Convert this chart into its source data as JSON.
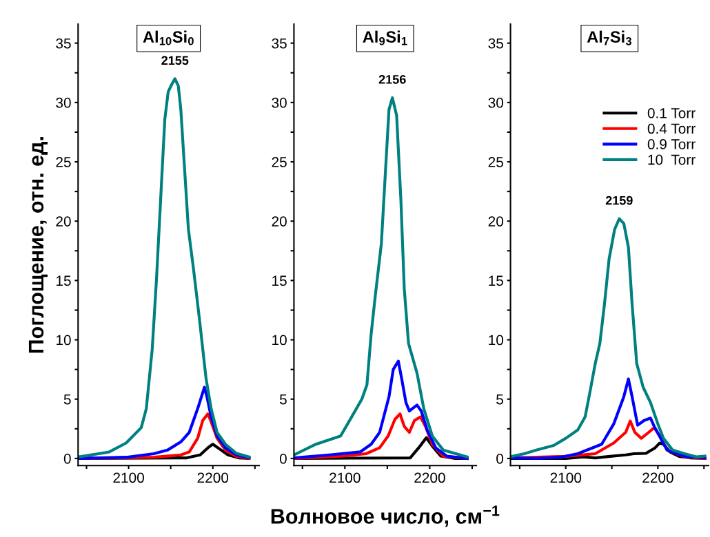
{
  "chart_data": [
    {
      "type": "line",
      "title": "Al$_{10}$Si$_{0}$",
      "ylabel": "Поглощение, отн. ед.",
      "xlim": [
        2040,
        2255
      ],
      "ylim": [
        -0.6,
        36.6
      ],
      "xticks": [
        {
          "value": 2050,
          "label": null
        },
        2100,
        {
          "value": 2150,
          "label": null
        },
        2200,
        {
          "value": 2250,
          "label": null
        }
      ],
      "yticks": [
        0,
        {
          "value": 2.5,
          "label": null
        },
        5,
        {
          "value": 7.5,
          "label": null
        },
        10,
        {
          "value": 12.5,
          "label": null
        },
        15,
        {
          "value": 17.5,
          "label": null
        },
        20,
        {
          "value": 22.5,
          "label": null
        },
        25,
        {
          "value": 27.5,
          "label": null
        },
        30,
        {
          "value": 32.5,
          "label": null
        },
        35
      ],
      "annotations": [
        {
          "text": "2155",
          "x": 2155,
          "y": 32
        }
      ],
      "grid": false,
      "legend": false,
      "series": [
        {
          "color": "#000000",
          "x": [
            2041,
            2169,
            2185,
            2195,
            2200,
            2208,
            2218,
            2231,
            2243
          ],
          "values": [
            0,
            0.05,
            0.3,
            0.95,
            1.2,
            0.8,
            0.3,
            0.05,
            0
          ]
        },
        {
          "color": "#ff0000",
          "x": [
            2041,
            2130,
            2162,
            2172,
            2182,
            2188,
            2194,
            2198,
            2205,
            2215,
            2228,
            2243
          ],
          "values": [
            0,
            0.1,
            0.3,
            0.55,
            1.7,
            3.2,
            3.75,
            3.1,
            1.7,
            0.7,
            0.18,
            0
          ]
        },
        {
          "color": "#0000ff",
          "x": [
            2041,
            2097,
            2130,
            2146,
            2162,
            2172,
            2182,
            2190,
            2193,
            2198,
            2205,
            2215,
            2228,
            2243
          ],
          "values": [
            0,
            0.1,
            0.4,
            0.7,
            1.4,
            2.2,
            4.2,
            6.0,
            5.2,
            3.5,
            1.9,
            0.9,
            0.3,
            0.05
          ]
        },
        {
          "color": "#008080",
          "x": [
            2041,
            2077,
            2097,
            2115,
            2121,
            2128,
            2133,
            2138,
            2143,
            2147,
            2151,
            2155,
            2159,
            2162,
            2166,
            2171,
            2177,
            2184,
            2192,
            2198,
            2205,
            2215,
            2228,
            2243
          ],
          "values": [
            0.13,
            0.55,
            1.3,
            2.6,
            4.2,
            9.2,
            15,
            21.8,
            28.6,
            30.9,
            31.5,
            32,
            31.4,
            29.4,
            24.9,
            19.3,
            16,
            11.8,
            6.7,
            4.2,
            2.2,
            1.2,
            0.43,
            0.13
          ]
        }
      ]
    },
    {
      "type": "line",
      "title": "Al$_{9}$Si$_{1}$",
      "xlabel": "Волновое число, см$^{−1}$",
      "xlim": [
        2040,
        2255
      ],
      "ylim": [
        -0.6,
        36.6
      ],
      "xticks": [
        {
          "value": 2050,
          "label": null
        },
        2100,
        {
          "value": 2150,
          "label": null
        },
        2200,
        {
          "value": 2250,
          "label": null
        }
      ],
      "yticks": [
        0,
        {
          "value": 2.5,
          "label": null
        },
        5,
        {
          "value": 7.5,
          "label": null
        },
        10,
        {
          "value": 12.5,
          "label": null
        },
        15,
        {
          "value": 17.5,
          "label": null
        },
        20,
        {
          "value": 22.5,
          "label": null
        },
        25,
        {
          "value": 27.5,
          "label": null
        },
        30,
        {
          "value": 32.5,
          "label": null
        },
        35
      ],
      "annotations": [
        {
          "text": "2156",
          "x": 2156,
          "y": 30.4
        }
      ],
      "grid": false,
      "legend": false,
      "series": [
        {
          "color": "#000000",
          "x": [
            2040,
            2177,
            2187,
            2196,
            2203,
            2213,
            2230,
            2244
          ],
          "values": [
            0,
            0.05,
            0.9,
            1.75,
            1.05,
            0.2,
            0,
            0
          ]
        },
        {
          "color": "#ff0000",
          "x": [
            2040,
            2098,
            2125,
            2141,
            2151,
            2159,
            2165,
            2170,
            2176,
            2182,
            2189,
            2195,
            2203,
            2216,
            2244
          ],
          "values": [
            0,
            0.2,
            0.4,
            0.9,
            1.9,
            3.3,
            3.75,
            2.7,
            2.2,
            3.2,
            3.5,
            2.7,
            1.2,
            0.18,
            0
          ]
        },
        {
          "color": "#0000ff",
          "x": [
            2040,
            2082,
            2118,
            2131,
            2141,
            2152,
            2157,
            2163,
            2167,
            2172,
            2176,
            2185,
            2190,
            2197,
            2207,
            2220,
            2244
          ],
          "values": [
            0.05,
            0.3,
            0.55,
            1.2,
            2.2,
            5.2,
            7.5,
            8.2,
            6.7,
            4.7,
            4.0,
            4.5,
            4.0,
            2.4,
            0.9,
            0.2,
            0
          ]
        },
        {
          "color": "#008080",
          "x": [
            2040,
            2066,
            2095,
            2108,
            2120,
            2126,
            2131,
            2136,
            2143,
            2148,
            2152,
            2156,
            2161,
            2166,
            2170,
            2175,
            2185,
            2193,
            2203,
            2216,
            2244
          ],
          "values": [
            0.3,
            1.2,
            1.9,
            3.5,
            5.0,
            6.2,
            10.5,
            13.8,
            18.1,
            24.4,
            29.4,
            30.4,
            28.9,
            21.8,
            14.3,
            9.7,
            7.2,
            4.2,
            1.9,
            0.7,
            0.13
          ]
        }
      ]
    },
    {
      "type": "line",
      "title": "Al$_{7}$Si$_{3}$",
      "xlim": [
        2040,
        2255
      ],
      "ylim": [
        -0.6,
        36.6
      ],
      "xticks": [
        {
          "value": 2050,
          "label": null
        },
        2100,
        {
          "value": 2150,
          "label": null
        },
        2200,
        {
          "value": 2250,
          "label": null
        }
      ],
      "yticks": [
        0,
        {
          "value": 2.5,
          "label": null
        },
        5,
        {
          "value": 7.5,
          "label": null
        },
        10,
        {
          "value": 12.5,
          "label": null
        },
        15,
        {
          "value": 17.5,
          "label": null
        },
        20,
        {
          "value": 22.5,
          "label": null
        },
        25,
        {
          "value": 27.5,
          "label": null
        },
        30,
        {
          "value": 32.5,
          "label": null
        },
        35
      ],
      "annotations": [
        {
          "text": "2159",
          "x": 2158,
          "y": 20.2
        }
      ],
      "grid": false,
      "legend": "top right",
      "series": [
        {
          "name": "0.1 Torr",
          "color": "#000000",
          "x": [
            2042,
            2100,
            2119,
            2132,
            2148,
            2165,
            2174,
            2187,
            2197,
            2202,
            2206,
            2213,
            2223,
            2235,
            2251
          ],
          "values": [
            0,
            0,
            0.13,
            0.05,
            0.18,
            0.3,
            0.4,
            0.43,
            0.9,
            1.3,
            1.2,
            0.55,
            0.18,
            0.05,
            0
          ]
        },
        {
          "name": "0.4 Torr",
          "color": "#ff0000",
          "x": [
            2042,
            2100,
            2132,
            2152,
            2165,
            2170,
            2175,
            2182,
            2190,
            2196,
            2202,
            2210,
            2229,
            2251
          ],
          "values": [
            0.05,
            0.18,
            0.4,
            1.3,
            2.2,
            3.15,
            2.2,
            1.7,
            2.2,
            2.6,
            1.9,
            0.7,
            0.13,
            0
          ]
        },
        {
          "name": "0.9 Torr",
          "color": "#0000ff",
          "x": [
            2042,
            2068,
            2094,
            2113,
            2139,
            2152,
            2163,
            2168,
            2172,
            2178,
            2185,
            2192,
            2196,
            2203,
            2210,
            2229,
            2251
          ],
          "values": [
            0.05,
            0,
            0.1,
            0.4,
            1.2,
            2.9,
            5.2,
            6.7,
            5.2,
            2.8,
            3.2,
            3.4,
            2.7,
            1.7,
            0.7,
            0.18,
            0.05
          ]
        },
        {
          "name": "10  Torr",
          "color": "#008080",
          "x": [
            2042,
            2055,
            2068,
            2087,
            2100,
            2113,
            2121,
            2126,
            2132,
            2137,
            2142,
            2147,
            2153,
            2158,
            2163,
            2168,
            2172,
            2177,
            2184,
            2192,
            2200,
            2206,
            2216,
            2229,
            2242,
            2251
          ],
          "values": [
            0.18,
            0.4,
            0.7,
            1.1,
            1.7,
            2.4,
            3.5,
            5.5,
            8,
            9.7,
            13,
            16.8,
            19.3,
            20.2,
            19.8,
            17.8,
            13,
            8,
            6,
            4.7,
            2.9,
            1.7,
            0.7,
            0.4,
            0.13,
            0.2
          ]
        }
      ]
    }
  ]
}
